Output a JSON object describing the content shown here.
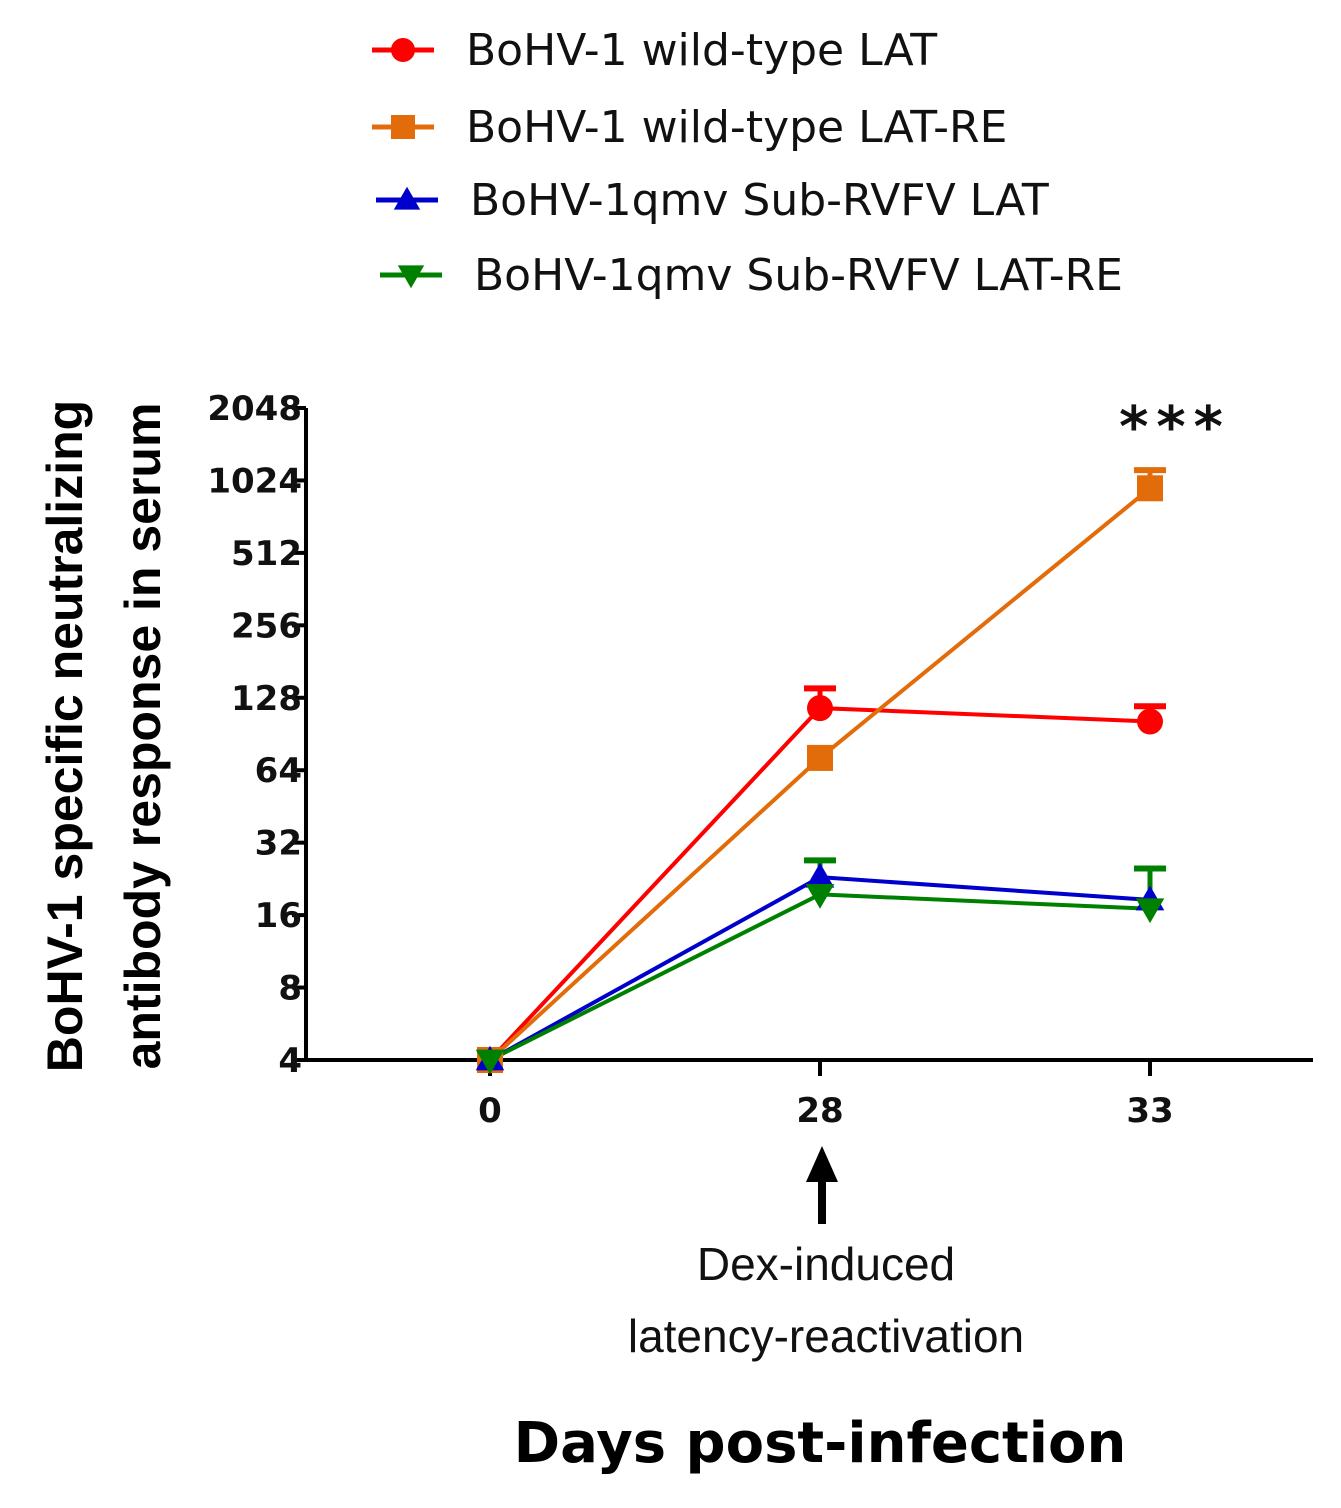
{
  "chart_data": {
    "type": "line",
    "title": "",
    "xlabel": "Days post-infection",
    "ylabel_lines": [
      "BoHV-1 specific neutralizing",
      "antibody response in serum"
    ],
    "yscale": "log2",
    "ylim": [
      4,
      2048
    ],
    "y_ticks": [
      4,
      8,
      16,
      32,
      64,
      128,
      256,
      512,
      1024,
      2048
    ],
    "y_tick_labels": [
      "4",
      "8",
      "16",
      "32",
      "64",
      "128",
      "256",
      "512",
      "1024",
      "2048"
    ],
    "categories": [
      "0",
      "28",
      "33"
    ],
    "series": [
      {
        "name": "BoHV-1 wild-type LAT",
        "color": "#ff0000",
        "marker": "circle",
        "values": [
          4,
          116,
          102
        ],
        "error_upper": [
          null,
          140,
          118
        ]
      },
      {
        "name": "BoHV-1 wild-type LAT-RE",
        "color": "#e36c0a",
        "marker": "square",
        "values": [
          4,
          72,
          950
        ],
        "error_upper": [
          null,
          null,
          1130
        ]
      },
      {
        "name": "BoHV-1qmv Sub-RVFV LAT",
        "color": "#0000cc",
        "marker": "triangle-up",
        "values": [
          4,
          23,
          18.5
        ],
        "error_upper": [
          null,
          null,
          null
        ]
      },
      {
        "name": "BoHV-1qmv Sub-RVFV LAT-RE",
        "color": "#008000",
        "marker": "triangle-down",
        "values": [
          4,
          19.5,
          17
        ],
        "error_upper": [
          null,
          27,
          25
        ]
      }
    ],
    "legend_position": "top",
    "annotations": {
      "significance": "***",
      "arrow_label_lines": [
        "Dex-induced",
        "latency-reactivation"
      ]
    }
  }
}
